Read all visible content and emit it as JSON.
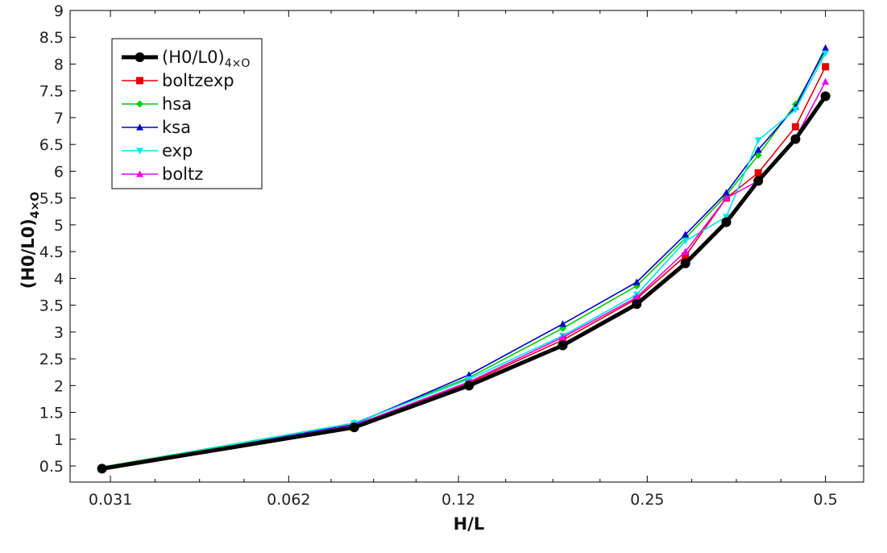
{
  "chart_data": {
    "type": "line",
    "xlabel": "H/L",
    "ylabel_main": "(H0/L0)",
    "ylabel_sub": "4×O",
    "x_scale": "log2",
    "xlim": [
      0.0265,
      0.58
    ],
    "ylim": [
      0.2,
      9
    ],
    "x_ticks": [
      0.031,
      0.062,
      0.12,
      0.25,
      0.5
    ],
    "x_tick_labels": [
      "0.031",
      "0.062",
      "0.12",
      "0.25",
      "0.5"
    ],
    "y_ticks": [
      0.5,
      1,
      1.5,
      2,
      2.5,
      3,
      3.5,
      4,
      4.5,
      5,
      5.5,
      6,
      6.5,
      7,
      7.5,
      8,
      8.5,
      9
    ],
    "y_tick_labels": [
      "0.5",
      "1",
      "1.5",
      "2",
      "2.5",
      "3",
      "3.5",
      "4",
      "4.5",
      "5",
      "5.5",
      "6",
      "6.5",
      "7",
      "7.5",
      "8",
      "8.5",
      "9"
    ],
    "grid": false,
    "legend_position": "top-left",
    "x": [
      0.03,
      0.08,
      0.125,
      0.18,
      0.24,
      0.29,
      0.34,
      0.385,
      0.445,
      0.5
    ],
    "series": [
      {
        "name_main": "(H0/L0)",
        "name_sub": "4×O",
        "color": "#000000",
        "marker": "circle",
        "values": [
          0.45,
          1.22,
          2.0,
          2.75,
          3.52,
          4.28,
          5.05,
          5.82,
          6.6,
          7.4
        ]
      },
      {
        "name": "boltzexp",
        "color": "#e60000",
        "marker": "square",
        "values": [
          0.45,
          1.25,
          2.05,
          2.85,
          3.62,
          4.42,
          5.5,
          5.97,
          6.83,
          7.95
        ]
      },
      {
        "name": "hsa",
        "color": "#00cc00",
        "marker": "diamond",
        "values": [
          0.48,
          1.3,
          2.15,
          3.07,
          3.86,
          4.75,
          5.55,
          6.3,
          7.25,
          8.25
        ]
      },
      {
        "name": "ksa",
        "color": "#0000cc",
        "marker": "triangle-up",
        "values": [
          0.47,
          1.28,
          2.2,
          3.15,
          3.93,
          4.82,
          5.6,
          6.4,
          7.2,
          8.3
        ]
      },
      {
        "name": "exp",
        "color": "#00e5ee",
        "marker": "triangle-down",
        "values": [
          0.47,
          1.3,
          2.12,
          2.93,
          3.7,
          4.7,
          5.15,
          6.58,
          7.15,
          8.2
        ]
      },
      {
        "name": "boltz",
        "color": "#ee00ee",
        "marker": "triangle-up",
        "values": [
          0.44,
          1.26,
          2.07,
          2.9,
          3.65,
          4.5,
          5.5,
          5.82,
          6.62,
          7.67
        ]
      }
    ]
  }
}
